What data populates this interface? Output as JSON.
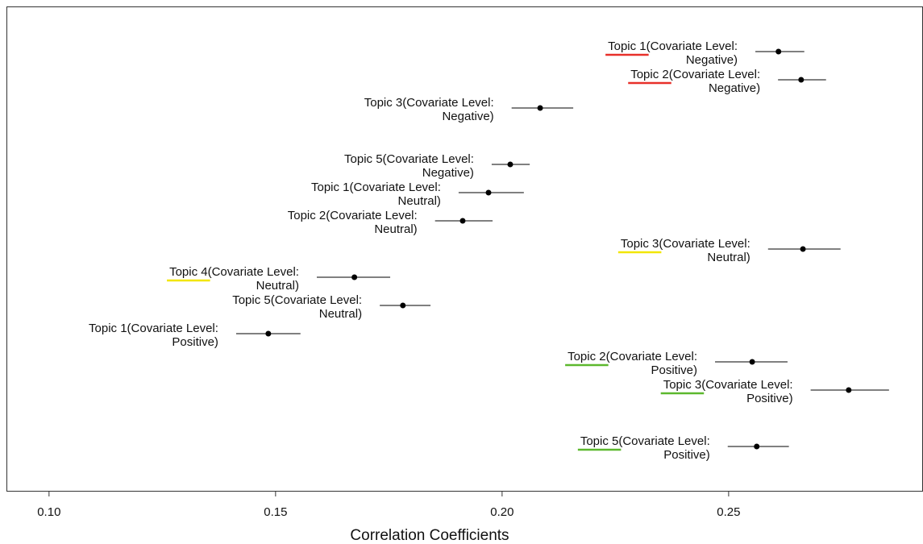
{
  "chart_data": {
    "type": "pointrange",
    "x_label": "Correlation Coefficients",
    "categories": [
      "Topic 1(Covariate Level:\nNegative)",
      "Topic 2(Covariate Level:\nNegative)",
      "Topic 3(Covariate Level:\nNegative)",
      null,
      "Topic 5(Covariate Level:\nNegative)",
      "Topic 1(Covariate Level:\nNeutral)",
      "Topic 2(Covariate Level:\nNeutral)",
      "Topic 3(Covariate Level:\nNeutral)",
      "Topic 4(Covariate Level:\nNeutral)",
      "Topic 5(Covariate Level:\nNeutral)",
      "Topic 1(Covariate Level:\nPositive)",
      "Topic 2(Covariate Level:\nPositive)",
      "Topic 3(Covariate Level:\nPositive)",
      null,
      "Topic 5(Covariate Level:\nPositive)"
    ],
    "values": [
      0.261,
      0.266,
      0.2084,
      null,
      0.2018,
      0.197,
      0.1913,
      0.2664,
      0.1674,
      0.1781,
      0.1484,
      0.2552,
      0.2765,
      null,
      0.2562
    ],
    "lower": [
      0.2559,
      0.2609,
      0.2021,
      null,
      0.1977,
      0.1904,
      0.1852,
      0.2587,
      0.1591,
      0.173,
      0.1413,
      0.247,
      0.2681,
      null,
      0.2498
    ],
    "upper": [
      0.2667,
      0.2715,
      0.2157,
      null,
      0.2061,
      0.2048,
      0.1979,
      0.2747,
      0.1753,
      0.1842,
      0.1555,
      0.263,
      0.2854,
      null,
      0.2633
    ],
    "underline_colors": [
      "#e8302a",
      "#e8302a",
      null,
      null,
      null,
      null,
      null,
      "#f2e600",
      "#f2e600",
      null,
      null,
      "#5cb82e",
      "#5cb82e",
      null,
      "#5cb82e"
    ],
    "color": "#000000",
    "xlim": [
      0.0906,
      0.2929
    ],
    "xticks": [
      {
        "value": 0.1,
        "label": "0.10"
      },
      0.15,
      {
        "value": 0.2,
        "label": "0.20"
      },
      0.25
    ]
  }
}
